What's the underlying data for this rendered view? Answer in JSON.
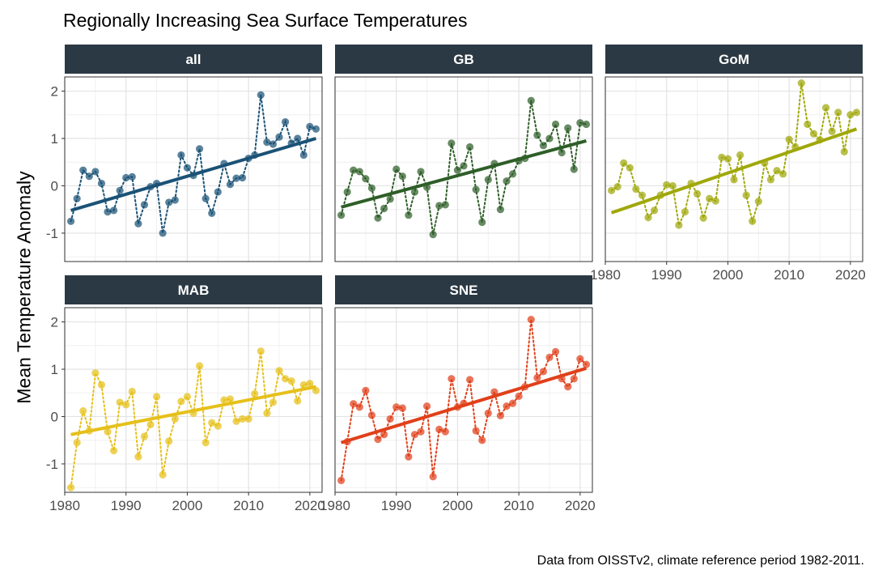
{
  "chart_data": {
    "type": "line",
    "title": "Regionally Increasing Sea Surface Temperatures",
    "ylabel": "Mean Temperature Anomaly",
    "caption": "Data from OISSTv2, climate reference period 1982-2011.",
    "xlim": [
      1980,
      2022
    ],
    "ylim": [
      -1.6,
      2.3
    ],
    "x_ticks": [
      1980,
      1990,
      2000,
      2010,
      2020
    ],
    "y_ticks": [
      -1,
      0,
      1,
      2
    ],
    "years": [
      1981,
      1982,
      1983,
      1984,
      1985,
      1986,
      1987,
      1988,
      1989,
      1990,
      1991,
      1992,
      1993,
      1994,
      1995,
      1996,
      1997,
      1998,
      1999,
      2000,
      2001,
      2002,
      2003,
      2004,
      2005,
      2006,
      2007,
      2008,
      2009,
      2010,
      2011,
      2012,
      2013,
      2014,
      2015,
      2016,
      2017,
      2018,
      2019,
      2020,
      2021
    ],
    "panels": [
      {
        "name": "all",
        "color": "#1a5276",
        "values": [
          -0.75,
          -0.27,
          0.33,
          0.2,
          0.3,
          0.05,
          -0.55,
          -0.52,
          -0.1,
          0.17,
          0.19,
          -0.8,
          -0.4,
          -0.02,
          0.05,
          -1.0,
          -0.35,
          -0.3,
          0.65,
          0.38,
          0.22,
          0.78,
          -0.27,
          -0.58,
          -0.13,
          0.47,
          0.03,
          0.16,
          0.17,
          0.58,
          0.65,
          1.92,
          0.92,
          0.88,
          1.03,
          1.35,
          0.9,
          1.0,
          0.65,
          1.25,
          1.2
        ],
        "trend": [
          -0.52,
          1.0
        ]
      },
      {
        "name": "GB",
        "color": "#2e5e28",
        "values": [
          -0.62,
          -0.13,
          0.33,
          0.3,
          0.15,
          -0.05,
          -0.68,
          -0.48,
          -0.28,
          0.35,
          0.2,
          -0.62,
          -0.13,
          0.3,
          -0.03,
          -1.03,
          -0.42,
          -0.4,
          0.9,
          0.33,
          0.42,
          0.82,
          -0.08,
          -0.77,
          0.13,
          0.47,
          -0.5,
          0.1,
          0.25,
          0.53,
          0.58,
          1.8,
          1.07,
          0.85,
          1.0,
          1.3,
          0.7,
          1.22,
          0.35,
          1.33,
          1.3
        ],
        "trend": [
          -0.45,
          0.95
        ]
      },
      {
        "name": "GoM",
        "color": "#a0a80a",
        "values": [
          -0.1,
          -0.02,
          0.48,
          0.38,
          -0.07,
          -0.2,
          -0.67,
          -0.52,
          -0.2,
          0.02,
          0.0,
          -0.83,
          -0.55,
          0.05,
          -0.17,
          -0.68,
          -0.27,
          -0.32,
          0.6,
          0.57,
          0.13,
          0.65,
          -0.2,
          -0.75,
          -0.33,
          0.48,
          0.13,
          0.32,
          0.25,
          0.98,
          0.82,
          2.17,
          1.3,
          1.1,
          0.97,
          1.65,
          1.15,
          1.55,
          0.72,
          1.5,
          1.55
        ],
        "trend": [
          -0.57,
          1.2
        ]
      },
      {
        "name": "MAB",
        "color": "#e6c01a",
        "values": [
          -1.5,
          -0.55,
          0.12,
          -0.3,
          0.92,
          0.67,
          -0.32,
          -0.72,
          0.3,
          0.25,
          0.53,
          -0.85,
          -0.42,
          -0.17,
          0.42,
          -1.23,
          -0.52,
          -0.05,
          0.32,
          0.42,
          0.07,
          1.07,
          -0.55,
          -0.13,
          -0.2,
          0.35,
          0.37,
          -0.1,
          -0.05,
          -0.05,
          0.48,
          1.38,
          0.07,
          0.3,
          0.97,
          0.8,
          0.75,
          0.33,
          0.67,
          0.7,
          0.55
        ],
        "trend": [
          -0.38,
          0.63
        ]
      },
      {
        "name": "SNE",
        "color": "#e0401a",
        "values": [
          -1.35,
          -0.53,
          0.27,
          0.2,
          0.55,
          0.03,
          -0.48,
          -0.38,
          -0.05,
          0.2,
          0.18,
          -0.85,
          -0.38,
          -0.32,
          0.22,
          -1.27,
          -0.27,
          -0.32,
          0.8,
          0.2,
          0.28,
          0.78,
          -0.3,
          -0.5,
          0.07,
          0.52,
          0.02,
          0.22,
          0.28,
          0.43,
          0.63,
          2.05,
          0.82,
          0.95,
          1.25,
          1.37,
          0.8,
          0.63,
          0.8,
          1.22,
          1.1
        ],
        "trend": [
          -0.55,
          1.02
        ]
      }
    ]
  }
}
